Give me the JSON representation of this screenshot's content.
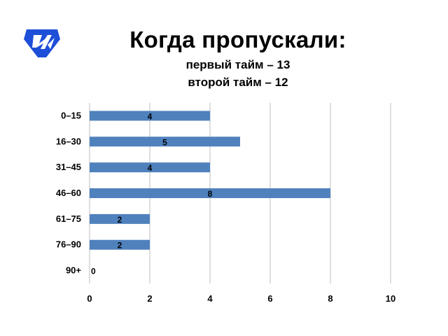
{
  "header": {
    "title": "Когда пропускали:",
    "subtitle_line1": "первый тайм – 13",
    "subtitle_line2": "второй тайм – 12"
  },
  "logo": {
    "icon": "club-shield-logo",
    "color": "#1e4fd8"
  },
  "chart_data": {
    "type": "bar",
    "orientation": "horizontal",
    "categories": [
      "0–15",
      "16–30",
      "31–45",
      "46–60",
      "61–75",
      "76–90",
      "90+"
    ],
    "values": [
      4,
      5,
      4,
      8,
      2,
      2,
      0
    ],
    "data_labels": [
      "4",
      "5",
      "4",
      "8",
      "2",
      "2",
      "0"
    ],
    "xlim": [
      0,
      10
    ],
    "x_ticks": [
      "0",
      "2",
      "4",
      "6",
      "8",
      "10"
    ],
    "grid": "vertical",
    "bar_color": "#4f81bd",
    "grid_color": "#bfbfbf"
  }
}
